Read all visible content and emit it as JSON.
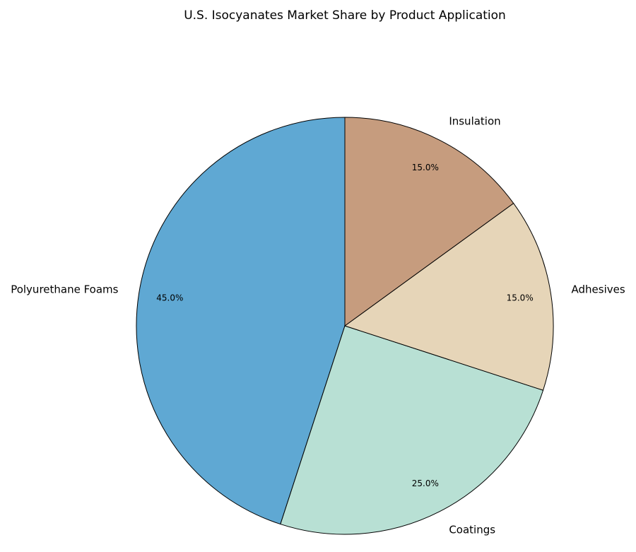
{
  "chart_data": {
    "type": "pie",
    "title": "U.S. Isocyanates Market Share by Product Application",
    "categories": [
      "Polyurethane Foams",
      "Coatings",
      "Adhesives",
      "Insulation"
    ],
    "values": [
      45,
      25,
      15,
      15
    ],
    "value_labels": [
      "45.0%",
      "25.0%",
      "15.0%",
      "15.0%"
    ],
    "colors": [
      "#5fa8d3",
      "#b8e0d4",
      "#e6d5b8",
      "#c69c7e"
    ]
  }
}
